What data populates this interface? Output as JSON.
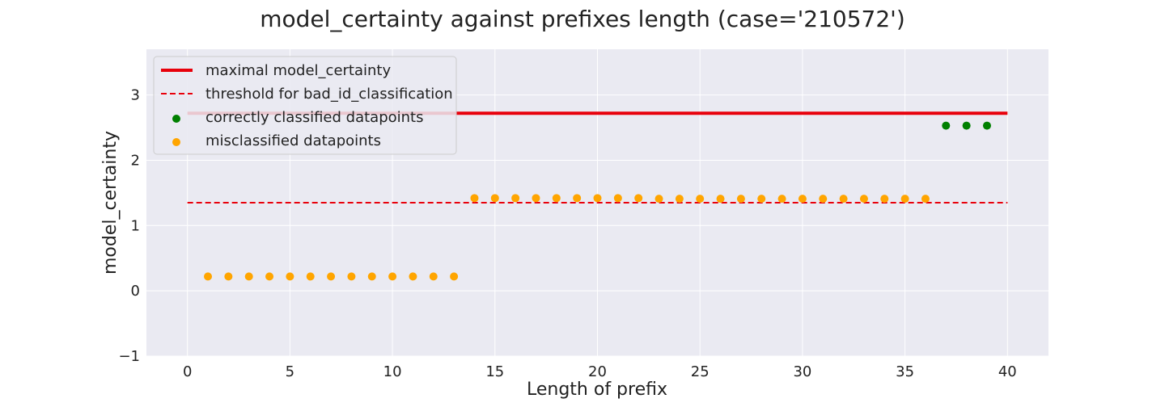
{
  "chart_data": {
    "type": "scatter",
    "title": "model_certainty against prefixes length (case='210572')",
    "xlabel": "Length of prefix",
    "ylabel": "model_certainty",
    "xlim": [
      -2,
      42
    ],
    "ylim": [
      -1,
      3.7
    ],
    "xticks": [
      0,
      5,
      10,
      15,
      20,
      25,
      30,
      35,
      40
    ],
    "yticks": [
      -1,
      0,
      1,
      2,
      3
    ],
    "grid": true,
    "legend_position": "top-left",
    "lines": [
      {
        "name": "maximal model_certainty",
        "style": "solid",
        "color": "#e8000b",
        "x": [
          0,
          40
        ],
        "y": [
          2.72,
          2.72
        ]
      },
      {
        "name": "threshold for bad_id_classification",
        "style": "dashed",
        "color": "#e8000b",
        "x": [
          0,
          40
        ],
        "y": [
          1.35,
          1.35
        ]
      }
    ],
    "series": [
      {
        "name": "correctly classified datapoints",
        "color": "#008000",
        "points": [
          [
            37,
            2.53
          ],
          [
            38,
            2.53
          ],
          [
            39,
            2.53
          ]
        ]
      },
      {
        "name": "misclassified datapoints",
        "color": "#ffa500",
        "points": [
          [
            1,
            0.22
          ],
          [
            2,
            0.22
          ],
          [
            3,
            0.22
          ],
          [
            4,
            0.22
          ],
          [
            5,
            0.22
          ],
          [
            6,
            0.22
          ],
          [
            7,
            0.22
          ],
          [
            8,
            0.22
          ],
          [
            9,
            0.22
          ],
          [
            10,
            0.22
          ],
          [
            11,
            0.22
          ],
          [
            12,
            0.22
          ],
          [
            13,
            0.22
          ],
          [
            14,
            1.42
          ],
          [
            15,
            1.42
          ],
          [
            16,
            1.42
          ],
          [
            17,
            1.42
          ],
          [
            18,
            1.42
          ],
          [
            19,
            1.42
          ],
          [
            20,
            1.42
          ],
          [
            21,
            1.42
          ],
          [
            22,
            1.42
          ],
          [
            23,
            1.41
          ],
          [
            24,
            1.41
          ],
          [
            25,
            1.41
          ],
          [
            26,
            1.41
          ],
          [
            27,
            1.41
          ],
          [
            28,
            1.41
          ],
          [
            29,
            1.41
          ],
          [
            30,
            1.41
          ],
          [
            31,
            1.41
          ],
          [
            32,
            1.41
          ],
          [
            33,
            1.41
          ],
          [
            34,
            1.41
          ],
          [
            35,
            1.41
          ],
          [
            36,
            1.41
          ]
        ]
      }
    ],
    "colors": {
      "plot_background": "#eaeaf2",
      "grid": "#ffffff"
    }
  }
}
